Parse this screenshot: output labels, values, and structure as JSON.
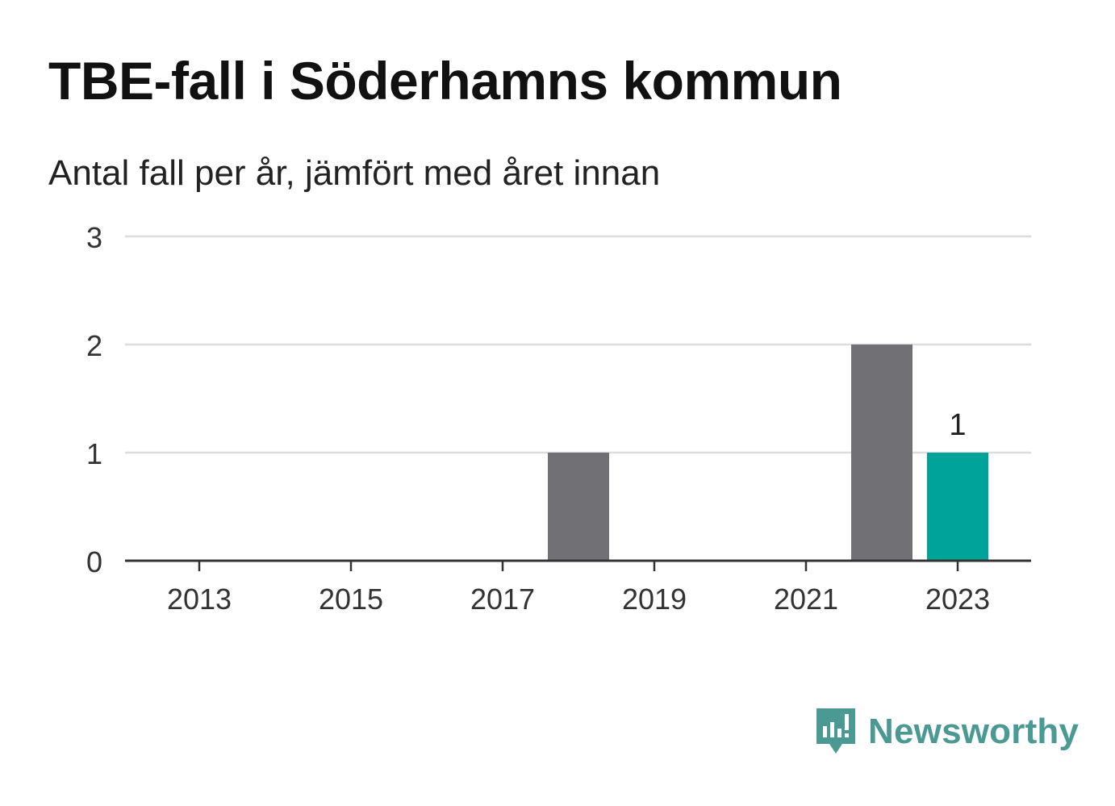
{
  "title": "TBE-fall i Söderhamns kommun",
  "subtitle": "Antal fall per år, jämfört med året innan",
  "brand": {
    "name": "Newsworthy",
    "icon": "newsworthy-logo-icon"
  },
  "colors": {
    "bar_default": "#707075",
    "bar_highlight": "#00a398",
    "grid": "#dddddd",
    "axis": "#333333",
    "brand": "#4a9a93"
  },
  "chart_data": {
    "type": "bar",
    "categories": [
      "2013",
      "2014",
      "2015",
      "2016",
      "2017",
      "2018",
      "2019",
      "2020",
      "2021",
      "2022",
      "2023"
    ],
    "values": [
      0,
      0,
      0,
      0,
      0,
      1,
      0,
      0,
      0,
      2,
      1
    ],
    "highlight_category": "2023",
    "data_labels": [
      {
        "category": "2023",
        "text": "1"
      }
    ],
    "x_tick_labels": [
      "2013",
      "2015",
      "2017",
      "2019",
      "2021",
      "2023"
    ],
    "y_ticks": [
      0,
      1,
      2,
      3
    ],
    "ylim": [
      0,
      3
    ],
    "xlabel": "",
    "ylabel": "",
    "grid": true,
    "legend": "none"
  }
}
